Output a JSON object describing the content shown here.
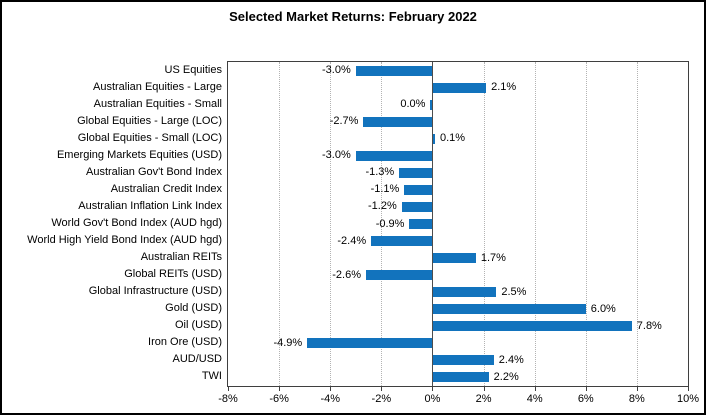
{
  "chart_data": {
    "type": "bar",
    "orientation": "horizontal",
    "title": "Selected Market Returns: February 2022",
    "categories": [
      "US Equities",
      "Australian Equities - Large",
      "Australian Equities - Small",
      "Global Equities - Large (LOC)",
      "Global Equities - Small (LOC)",
      "Emerging Markets Equities (USD)",
      "Australian Gov't Bond Index",
      "Australian Credit Index",
      "Australian Inflation Link Index",
      "World Gov't Bond Index (AUD hgd)",
      "World High Yield Bond Index (AUD hgd)",
      "Australian REITs",
      "Global REITs (USD)",
      "Global Infrastructure (USD)",
      "Gold (USD)",
      "Oil (USD)",
      "Iron Ore (USD)",
      "AUD/USD",
      "TWI"
    ],
    "values": [
      -3.0,
      2.1,
      0.0,
      -2.7,
      0.1,
      -3.0,
      -1.3,
      -1.1,
      -1.2,
      -0.9,
      -2.4,
      1.7,
      -2.6,
      2.5,
      6.0,
      7.8,
      -4.9,
      2.4,
      2.2
    ],
    "value_labels": [
      "-3.0%",
      "2.1%",
      "0.0%",
      "-2.7%",
      "0.1%",
      "-3.0%",
      "-1.3%",
      "-1.1%",
      "-1.2%",
      "-0.9%",
      "-2.4%",
      "1.7%",
      "-2.6%",
      "2.5%",
      "6.0%",
      "7.8%",
      "-4.9%",
      "2.4%",
      "2.2%"
    ],
    "xlabel": "",
    "ylabel": "",
    "xlim": [
      -8,
      10
    ],
    "x_tick_values": [
      -8,
      -6,
      -4,
      -2,
      0,
      2,
      4,
      6,
      8,
      10
    ],
    "x_tick_labels": [
      "-8%",
      "-6%",
      "-4%",
      "-2%",
      "0%",
      "2%",
      "4%",
      "6%",
      "8%",
      "10%"
    ],
    "bar_color": "#1273BD",
    "grid": true,
    "gridline_style": "dotted",
    "legend": false
  }
}
